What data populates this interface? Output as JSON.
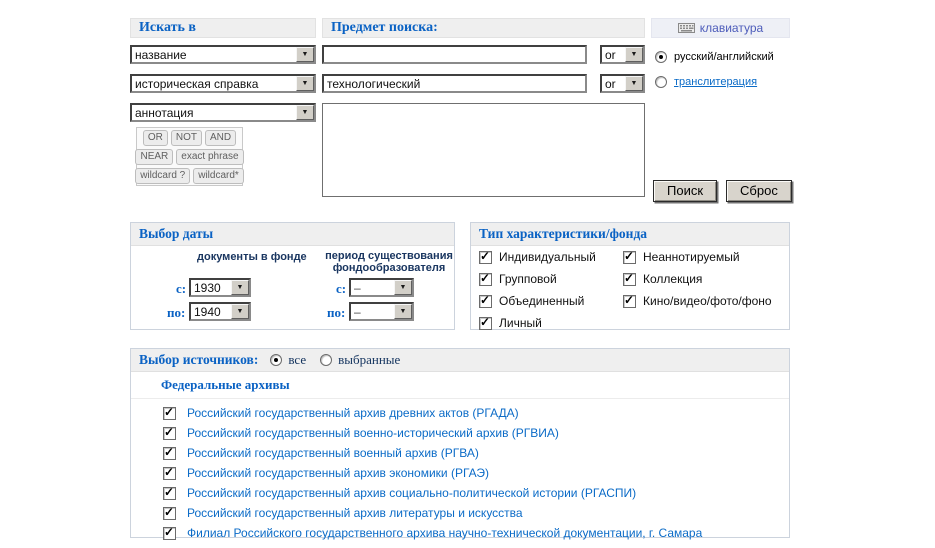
{
  "search_in": {
    "title": "Искать в",
    "fields": [
      "название",
      "историческая справка",
      "аннотация"
    ],
    "operators": [
      [
        "OR",
        "NOT",
        "AND"
      ],
      [
        "NEAR",
        "exact phrase"
      ],
      [
        "wildcard ?",
        "wildcard*"
      ]
    ]
  },
  "search_subject": {
    "title": "Предмет поиска:",
    "rows": [
      {
        "value": "",
        "operator": "or"
      },
      {
        "value": "технологический",
        "operator": "or"
      }
    ],
    "textarea_value": ""
  },
  "right_panel": {
    "keyboard_label": "клавиатура",
    "language_options": [
      {
        "label": "русский/английский",
        "selected": true,
        "link": false
      },
      {
        "label": "транслитерация",
        "selected": false,
        "link": true
      }
    ],
    "search_button": "Поиск",
    "reset_button": "Сброс"
  },
  "date_selection": {
    "title": "Выбор даты",
    "docs_label": "документы в фонде",
    "period_label": "период существования фондообразователя",
    "from_label": "с:",
    "to_label": "по:",
    "docs_from": "1930",
    "docs_to": "1940",
    "period_from": "–",
    "period_to": "–"
  },
  "fund_type": {
    "title": "Тип характеристики/фонда",
    "left": [
      {
        "label": "Индивидуальный",
        "checked": true
      },
      {
        "label": "Групповой",
        "checked": true
      },
      {
        "label": "Объединенный",
        "checked": true
      },
      {
        "label": "Личный",
        "checked": true
      }
    ],
    "right": [
      {
        "label": "Неаннотируемый",
        "checked": true
      },
      {
        "label": "Коллекция",
        "checked": true
      },
      {
        "label": "Кино/видео/фото/фоно",
        "checked": true
      }
    ]
  },
  "sources": {
    "title": "Выбор источников:",
    "options": [
      {
        "label": "все",
        "selected": true
      },
      {
        "label": "выбранные",
        "selected": false
      }
    ],
    "group_title": "Федеральные архивы",
    "archives": [
      {
        "label": "Российский государственный архив древних актов (РГАДА)",
        "checked": true
      },
      {
        "label": "Российский государственный военно-исторический архив (РГВИА)",
        "checked": true
      },
      {
        "label": "Российский государственный военный архив (РГВА)",
        "checked": true
      },
      {
        "label": "Российский государственный архив экономики (РГАЭ)",
        "checked": true
      },
      {
        "label": "Российский государственный архив социально-политической истории (РГАСПИ)",
        "checked": true
      },
      {
        "label": "Российский государственный архив литературы и искусства",
        "checked": true
      },
      {
        "label": "Филиал Российского государственного архива научно-технической документации, г. Самара",
        "checked": true
      }
    ]
  },
  "colors": {
    "accent_blue": "#0a62c4",
    "link_blue": "#0b6bc7",
    "keyboard_link": "#4d5cba",
    "band_gray": "#efefef",
    "panel_blue": "#eef0f6",
    "button_face": "#d8d4cc"
  }
}
